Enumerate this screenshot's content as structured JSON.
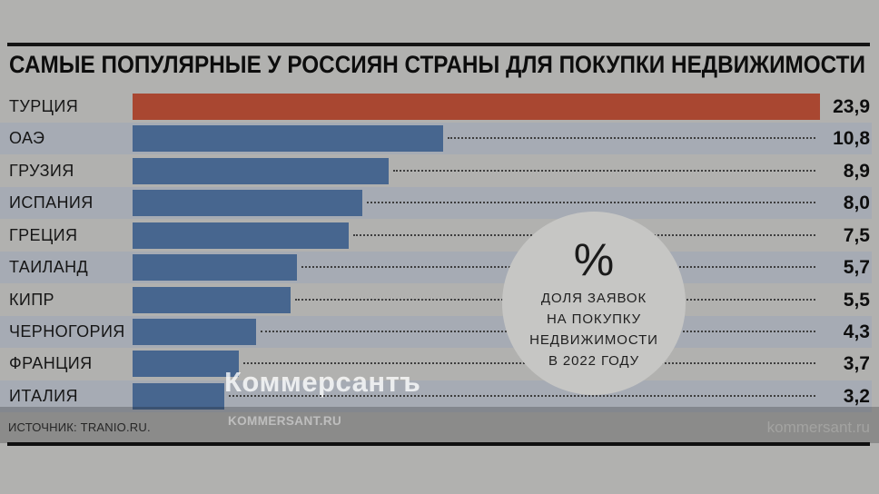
{
  "title": "САМЫЕ ПОПУЛЯРНЫЕ У РОССИЯН СТРАНЫ ДЛЯ ПОКУПКИ НЕДВИЖИМОСТИ",
  "source": "ИСТОЧНИК: TRANIO.RU.",
  "footer_site": "kommersant.ru",
  "watermark": {
    "main": "Коммерсантъ",
    "sub": "KOMMERSANT.RU"
  },
  "chart_data": {
    "type": "bar",
    "orientation": "horizontal",
    "title": "САМЫЕ ПОПУЛЯРНЫЕ У РОССИЯН СТРАНЫ ДЛЯ ПОКУПКИ НЕДВИЖИМОСТИ",
    "categories": [
      "ТУРЦИЯ",
      "ОАЭ",
      "ГРУЗИЯ",
      "ИСПАНИЯ",
      "ГРЕЦИЯ",
      "ТАИЛАНД",
      "КИПР",
      "ЧЕРНОГОРИЯ",
      "ФРАНЦИЯ",
      "ИТАЛИЯ"
    ],
    "values": [
      23.9,
      10.8,
      8.9,
      8.0,
      7.5,
      5.7,
      5.5,
      4.3,
      3.7,
      3.2
    ],
    "value_labels": [
      "23,9",
      "10,8",
      "8,9",
      "8,0",
      "7,5",
      "5,7",
      "5,5",
      "4,3",
      "3,7",
      "3,2"
    ],
    "xlim": [
      0,
      23.9
    ],
    "highlight_index": 0,
    "grid": "off",
    "legend": "none",
    "unit_note": {
      "symbol": "%",
      "lines": [
        "ДОЛЯ ЗАЯВОК",
        "НА ПОКУПКУ",
        "НЕДВИЖИМОСТИ",
        "В 2022 ГОДУ"
      ]
    },
    "colors": {
      "highlight_bar": "#a94731",
      "bar": "#47668f",
      "row_band": "#a6abb4",
      "background": "#b1b1af",
      "circle": "#c6c6c4"
    }
  }
}
